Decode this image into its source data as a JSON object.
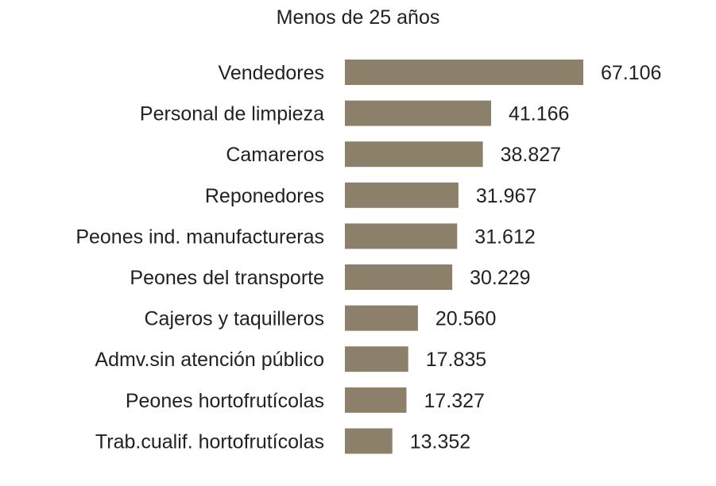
{
  "chart_data": {
    "type": "bar",
    "orientation": "horizontal",
    "title": "Menos de 25 años",
    "categories": [
      "Vendedores",
      "Personal de limpieza",
      "Camareros",
      "Reponedores",
      "Peones ind. manufactureras",
      "Peones del transporte",
      "Cajeros y taquilleros",
      "Admv.sin atención público",
      "Peones hortofrutícolas",
      "Trab.cualif. hortofrutícolas"
    ],
    "values": [
      67106,
      41166,
      38827,
      31967,
      31612,
      30229,
      20560,
      17835,
      17327,
      13352
    ],
    "value_labels": [
      "67.106",
      "41.166",
      "38.827",
      "31.967",
      "31.612",
      "30.229",
      "20.560",
      "17.835",
      "17.327",
      "13.352"
    ],
    "xlabel": "",
    "ylabel": "",
    "xlim": [
      0,
      67106
    ],
    "grid": false,
    "legend": "none",
    "colors": {
      "bar": "#8c806b",
      "text": "#222222",
      "background": "#ffffff"
    }
  }
}
